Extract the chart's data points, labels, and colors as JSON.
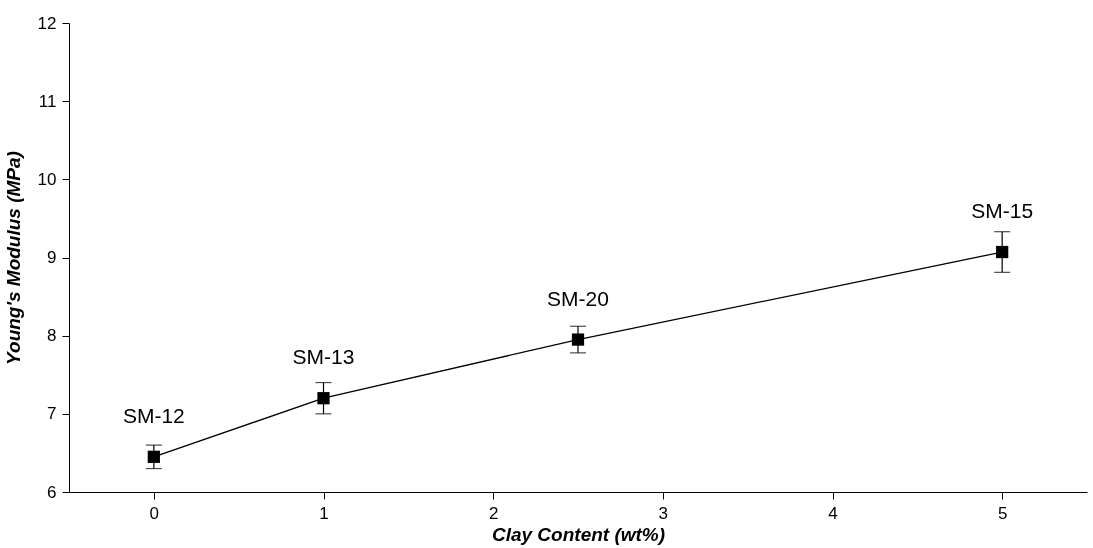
{
  "chart_data": {
    "type": "line",
    "xlabel": "Clay Content (wt%)",
    "ylabel": "Young's Modulus (MPa)",
    "x": [
      0,
      1,
      2.5,
      5
    ],
    "series": [
      {
        "color": "#000000",
        "values": [
          6.45,
          7.2,
          7.95,
          9.07
        ],
        "errors": [
          0.15,
          0.2,
          0.17,
          0.26
        ]
      }
    ],
    "xlim": [
      -0.5,
      5.5
    ],
    "xticks": [
      0,
      1,
      2,
      3,
      4,
      5
    ],
    "ylim": [
      6,
      12
    ],
    "yticks": [
      6,
      7,
      8,
      9,
      10,
      11,
      12
    ],
    "grid": false,
    "marker": "square",
    "line_style": "solid",
    "annotations": [
      {
        "text": "SM-12",
        "x": 0,
        "y": 6.45
      },
      {
        "text": "SM-13",
        "x": 1,
        "y": 7.2
      },
      {
        "text": "SM-20",
        "x": 2.5,
        "y": 7.95
      },
      {
        "text": "SM-15",
        "x": 5,
        "y": 9.07
      }
    ]
  }
}
